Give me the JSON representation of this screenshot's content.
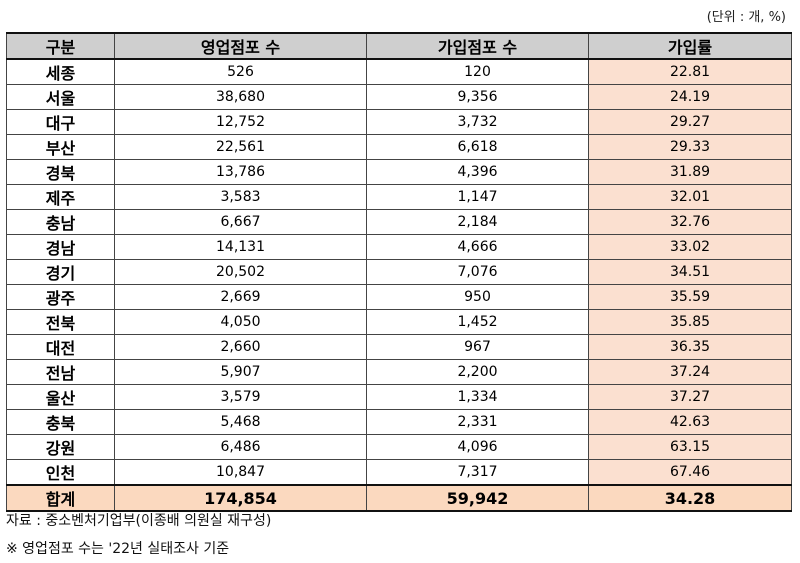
{
  "unit_label": "(단위 : 개, %)",
  "headers": [
    "구분",
    "영업점포 수",
    "가입점포 수",
    "가입률"
  ],
  "rows": [
    {
      "region": "세종",
      "operating": "526",
      "joined": "120",
      "rate": "22.81"
    },
    {
      "region": "서울",
      "operating": "38,680",
      "joined": "9,356",
      "rate": "24.19"
    },
    {
      "region": "대구",
      "operating": "12,752",
      "joined": "3,732",
      "rate": "29.27"
    },
    {
      "region": "부산",
      "operating": "22,561",
      "joined": "6,618",
      "rate": "29.33"
    },
    {
      "region": "경북",
      "operating": "13,786",
      "joined": "4,396",
      "rate": "31.89"
    },
    {
      "region": "제주",
      "operating": "3,583",
      "joined": "1,147",
      "rate": "32.01"
    },
    {
      "region": "충남",
      "operating": "6,667",
      "joined": "2,184",
      "rate": "32.76"
    },
    {
      "region": "경남",
      "operating": "14,131",
      "joined": "4,666",
      "rate": "33.02"
    },
    {
      "region": "경기",
      "operating": "20,502",
      "joined": "7,076",
      "rate": "34.51"
    },
    {
      "region": "광주",
      "operating": "2,669",
      "joined": "950",
      "rate": "35.59"
    },
    {
      "region": "전북",
      "operating": "4,050",
      "joined": "1,452",
      "rate": "35.85"
    },
    {
      "region": "대전",
      "operating": "2,660",
      "joined": "967",
      "rate": "36.35"
    },
    {
      "region": "전남",
      "operating": "5,907",
      "joined": "2,200",
      "rate": "37.24"
    },
    {
      "region": "울산",
      "operating": "3,579",
      "joined": "1,334",
      "rate": "37.27"
    },
    {
      "region": "충북",
      "operating": "5,468",
      "joined": "2,331",
      "rate": "42.63"
    },
    {
      "region": "강원",
      "operating": "6,486",
      "joined": "4,096",
      "rate": "63.15"
    },
    {
      "region": "인천",
      "operating": "10,847",
      "joined": "7,317",
      "rate": "67.46"
    }
  ],
  "total": {
    "region": "합계",
    "operating": "174,854",
    "joined": "59,942",
    "rate": "34.28"
  },
  "source_note": "자료 : 중소벤처기업부(이종배 의원실 재구성)",
  "remark_note": "※ 영업점포 수는 '22년 실태조사 기준",
  "colors": {
    "header_bg": "#cfcfcf",
    "rate_bg": "#fbe0d0",
    "total_bg": "#fbd9bf"
  }
}
